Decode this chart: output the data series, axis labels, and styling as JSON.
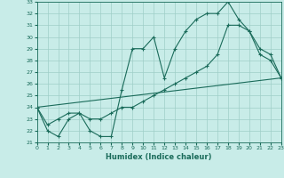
{
  "xlabel": "Humidex (Indice chaleur)",
  "xlim": [
    0,
    23
  ],
  "ylim": [
    21,
    33
  ],
  "yticks": [
    21,
    22,
    23,
    24,
    25,
    26,
    27,
    28,
    29,
    30,
    31,
    32,
    33
  ],
  "xticks": [
    0,
    1,
    2,
    3,
    4,
    5,
    6,
    7,
    8,
    9,
    10,
    11,
    12,
    13,
    14,
    15,
    16,
    17,
    18,
    19,
    20,
    21,
    22,
    23
  ],
  "background_color": "#c8ece8",
  "grid_color": "#9fcec8",
  "line_color": "#1a6b5a",
  "line1_x": [
    0,
    1,
    2,
    3,
    4,
    5,
    6,
    7,
    8,
    9,
    10,
    11,
    12,
    13,
    14,
    15,
    16,
    17,
    18,
    19,
    20,
    21,
    22,
    23
  ],
  "line1_y": [
    24,
    22,
    21.5,
    23,
    23.5,
    22,
    21.5,
    21.5,
    25.5,
    29,
    29,
    30,
    26.5,
    29,
    30.5,
    31.5,
    32,
    32,
    33,
    31.5,
    30.5,
    29,
    28.5,
    26.5
  ],
  "line2_x": [
    0,
    1,
    2,
    3,
    4,
    5,
    6,
    7,
    8,
    9,
    10,
    11,
    12,
    13,
    14,
    15,
    16,
    17,
    18,
    19,
    20,
    21,
    22,
    23
  ],
  "line2_y": [
    24,
    22.5,
    23,
    23.5,
    23.5,
    23,
    23,
    23.5,
    24,
    24,
    24.5,
    25,
    25.5,
    26,
    26.5,
    27,
    27.5,
    28.5,
    31,
    31,
    30.5,
    28.5,
    28,
    26.5
  ],
  "line3_x": [
    0,
    23
  ],
  "line3_y": [
    24,
    26.5
  ]
}
